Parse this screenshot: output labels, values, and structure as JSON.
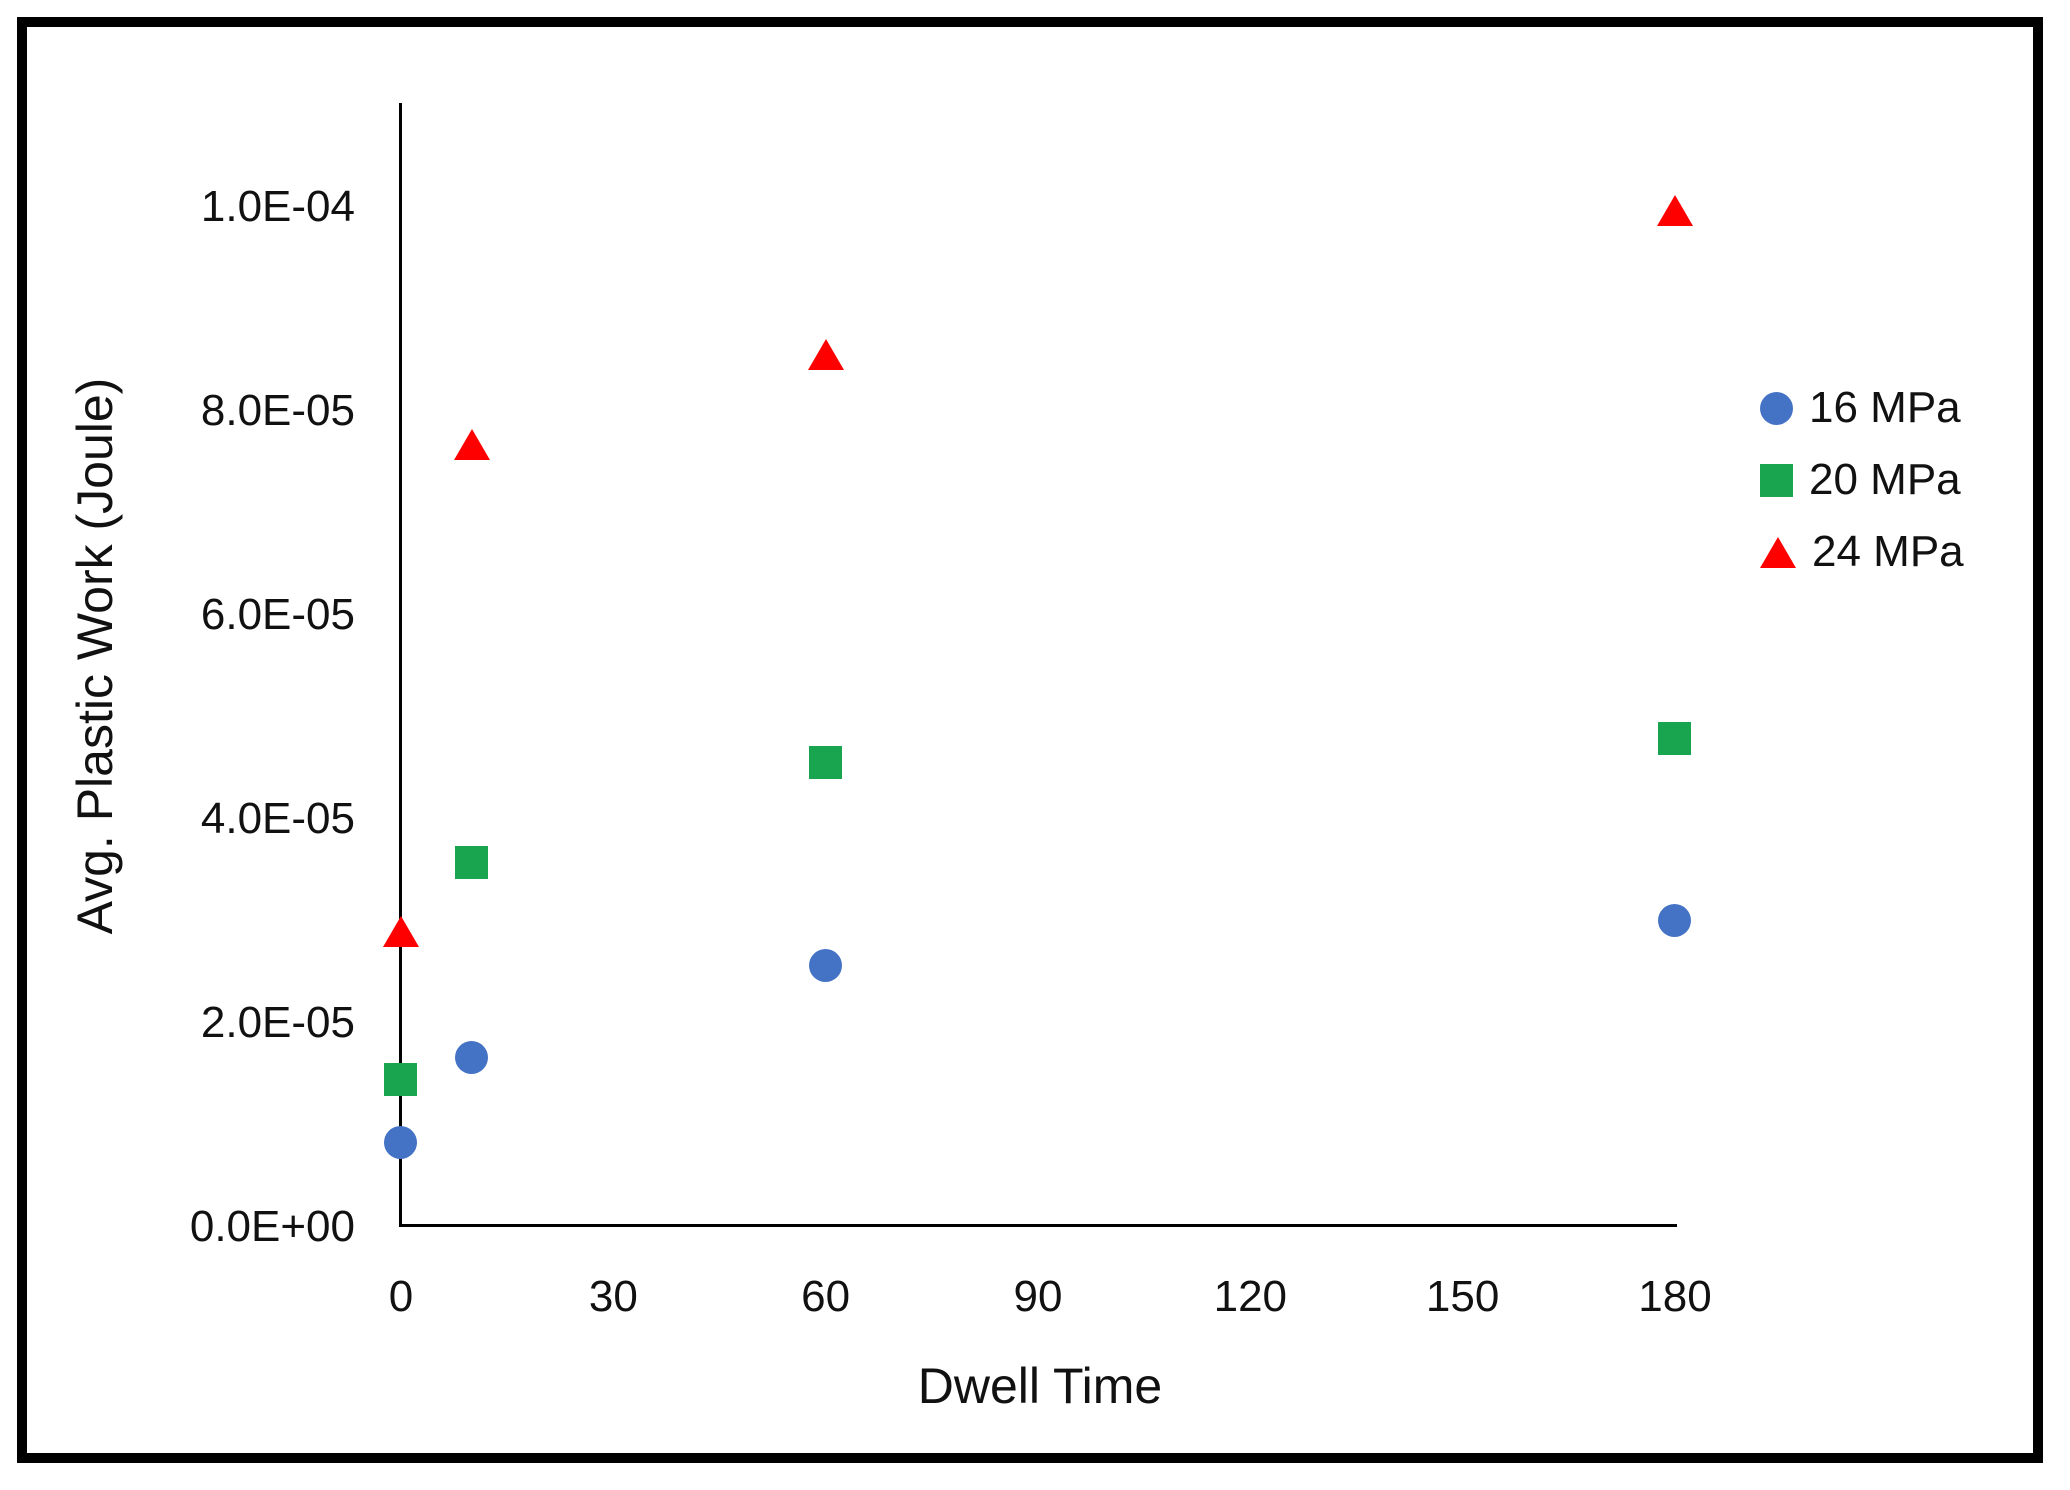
{
  "chart_data": {
    "type": "scatter",
    "title": "",
    "xlabel": "Dwell Time",
    "ylabel": "Avg. Plastic Work (Joule)",
    "xlim": [
      0,
      180
    ],
    "ylim": [
      0,
      0.00011
    ],
    "grid": false,
    "legend_position": "right",
    "x_ticks": [
      {
        "label": "0",
        "value": 0
      },
      {
        "label": "30",
        "value": 30
      },
      {
        "label": "60",
        "value": 60
      },
      {
        "label": "90",
        "value": 90
      },
      {
        "label": "120",
        "value": 120
      },
      {
        "label": "150",
        "value": 150
      },
      {
        "label": "180",
        "value": 180
      }
    ],
    "y_ticks": [
      {
        "label": "0.0E+00",
        "value": 0
      },
      {
        "label": "2.0E-05",
        "value": 2e-05
      },
      {
        "label": "4.0E-05",
        "value": 4e-05
      },
      {
        "label": "6.0E-05",
        "value": 6e-05
      },
      {
        "label": "8.0E-05",
        "value": 8e-05
      },
      {
        "label": "1.0E-04",
        "value": 0.0001
      }
    ],
    "series": [
      {
        "name": "16 MPa",
        "marker": "circle",
        "color": "#4472C4",
        "points": [
          {
            "x": 0,
            "y": 8.2e-06
          },
          {
            "x": 10,
            "y": 1.66e-05
          },
          {
            "x": 60,
            "y": 2.56e-05
          },
          {
            "x": 180,
            "y": 3e-05
          }
        ]
      },
      {
        "name": "20 MPa",
        "marker": "square",
        "color": "#19A450",
        "points": [
          {
            "x": 0,
            "y": 1.44e-05
          },
          {
            "x": 10,
            "y": 3.57e-05
          },
          {
            "x": 60,
            "y": 4.55e-05
          },
          {
            "x": 180,
            "y": 4.78e-05
          }
        ]
      },
      {
        "name": "24 MPa",
        "marker": "triangle",
        "color": "#FE0000",
        "points": [
          {
            "x": 0,
            "y": 2.89e-05
          },
          {
            "x": 10,
            "y": 7.67e-05
          },
          {
            "x": 60,
            "y": 8.55e-05
          },
          {
            "x": 180,
            "y": 9.96e-05
          }
        ]
      }
    ]
  }
}
